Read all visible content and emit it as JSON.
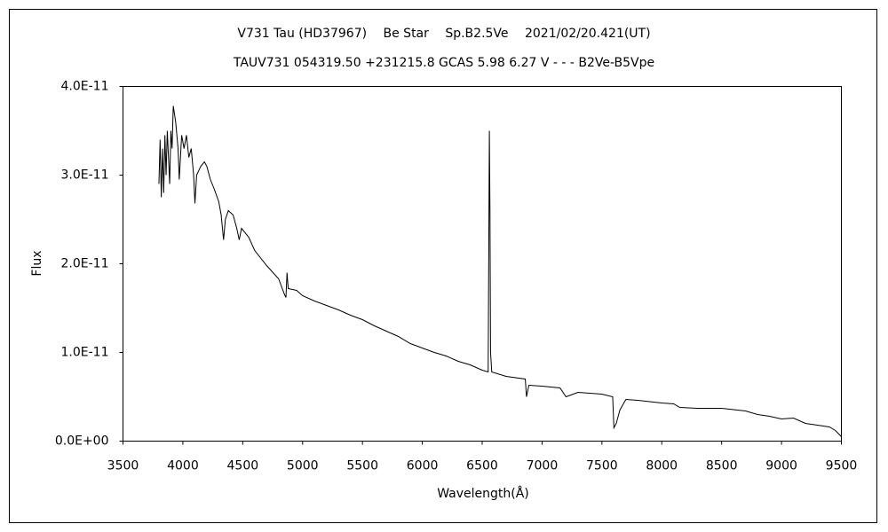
{
  "chart_data": {
    "type": "line",
    "title": "V731 Tau (HD37967)　 Be Star　 Sp.B2.5Ve　 2021/02/20.421(UT)",
    "subtitle": "TAUV731 054319.50 +231215.8 GCAS 5.98 6.27 V - - - B2Ve-B5Vpe",
    "xlabel": "Wavelength(Å)",
    "ylabel": "Flux",
    "color": "#000000",
    "x": [
      3800,
      3810,
      3820,
      3830,
      3840,
      3850,
      3860,
      3870,
      3880,
      3890,
      3900,
      3910,
      3920,
      3940,
      3960,
      3970,
      3990,
      4010,
      4030,
      4050,
      4070,
      4090,
      4101,
      4115,
      4150,
      4180,
      4200,
      4230,
      4260,
      4300,
      4320,
      4340,
      4355,
      4380,
      4420,
      4450,
      4471,
      4490,
      4550,
      4600,
      4700,
      4800,
      4850,
      4861,
      4870,
      4880,
      4950,
      5000,
      5100,
      5200,
      5300,
      5400,
      5500,
      5600,
      5700,
      5800,
      5900,
      6000,
      6100,
      6200,
      6300,
      6400,
      6500,
      6550,
      6560,
      6565,
      6570,
      6580,
      6700,
      6860,
      6870,
      6890,
      7000,
      7150,
      7200,
      7300,
      7500,
      7590,
      7600,
      7620,
      7650,
      7700,
      7800,
      8000,
      8100,
      8150,
      8300,
      8500,
      8700,
      8800,
      8900,
      9000,
      9100,
      9200,
      9300,
      9400,
      9450,
      9500
    ],
    "values": [
      2.9e-11,
      3.4e-11,
      2.75e-11,
      3.3e-11,
      2.8e-11,
      3.45e-11,
      3e-11,
      3.5e-11,
      3.2e-11,
      2.9e-11,
      3.5e-11,
      3.3e-11,
      3.78e-11,
      3.6e-11,
      3.3e-11,
      2.95e-11,
      3.45e-11,
      3.3e-11,
      3.45e-11,
      3.2e-11,
      3.3e-11,
      3e-11,
      2.68e-11,
      3e-11,
      3.1e-11,
      3.15e-11,
      3.1e-11,
      2.95e-11,
      2.85e-11,
      2.7e-11,
      2.55e-11,
      2.27e-11,
      2.5e-11,
      2.6e-11,
      2.55e-11,
      2.4e-11,
      2.27e-11,
      2.4e-11,
      2.3e-11,
      2.15e-11,
      1.98e-11,
      1.83e-11,
      1.65e-11,
      1.62e-11,
      1.9e-11,
      1.72e-11,
      1.7e-11,
      1.64e-11,
      1.58e-11,
      1.53e-11,
      1.48e-11,
      1.42e-11,
      1.37e-11,
      1.3e-11,
      1.24e-11,
      1.18e-11,
      1.1e-11,
      1.05e-11,
      1e-11,
      9.6e-12,
      9e-12,
      8.6e-12,
      8e-12,
      7.8e-12,
      3.5e-11,
      2.6e-11,
      1e-11,
      7.8e-12,
      7.3e-12,
      7e-12,
      5e-12,
      6.3e-12,
      6.2e-12,
      6e-12,
      5e-12,
      5.5e-12,
      5.3e-12,
      5e-12,
      1.5e-12,
      2e-12,
      3.5e-12,
      4.7e-12,
      4.6e-12,
      4.3e-12,
      4.2e-12,
      3.8e-12,
      3.7e-12,
      3.7e-12,
      3.4e-12,
      3e-12,
      2.8e-12,
      2.5e-12,
      2.6e-12,
      2e-12,
      1.8e-12,
      1.6e-12,
      1.2e-12,
      5e-13
    ],
    "xlim": [
      3500,
      9500
    ],
    "xticks": [
      3500,
      4000,
      4500,
      5000,
      5500,
      6000,
      6500,
      7000,
      7500,
      8000,
      8500,
      9000,
      9500
    ],
    "ylim": [
      0,
      4e-11
    ],
    "yticks": [
      {
        "value": 0,
        "label": "0.0E+00"
      },
      {
        "value": 1e-11,
        "label": "1.0E-11"
      },
      {
        "value": 2e-11,
        "label": "2.0E-11"
      },
      {
        "value": 3e-11,
        "label": "3.0E-11"
      },
      {
        "value": 4e-11,
        "label": "4.0E-11"
      }
    ],
    "grid": false
  }
}
